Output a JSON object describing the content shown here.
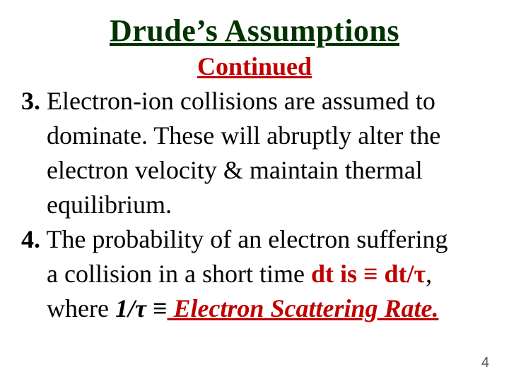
{
  "colors": {
    "title_color": "#003300",
    "accent_color": "#c00000",
    "body_color": "#000000",
    "pagenum_color": "#595959",
    "background": "#ffffff"
  },
  "typography": {
    "font_family": "Times New Roman",
    "title_fontsize_pt": 33,
    "subtitle_fontsize_pt": 27,
    "body_fontsize_pt": 27,
    "pagenum_fontsize_pt": 15,
    "title_weight": "bold",
    "subtitle_weight": "bold",
    "title_underline": true,
    "subtitle_underline": true
  },
  "title": "Drude’s Assumptions",
  "subtitle": "Continued",
  "items": [
    {
      "number": "3.",
      "lead": " Electron-ion collisions are assumed to",
      "lines": [
        "dominate. These will abruptly alter the",
        "electron velocity & maintain thermal",
        "equilibrium."
      ]
    },
    {
      "number": "4.",
      "lead": " The probability of an electron suffering",
      "lines_rich": {
        "l1_plain_a": " a collision in a short time ",
        "l1_red_a": "dt is ",
        "l1_equiv": "≡",
        "l1_red_b": " dt/τ",
        "l1_plain_b": ",",
        "l2_plain_a": " where ",
        "l2_bold_a": "1/τ ",
        "l2_equiv": "≡",
        "l2_italic": " Electron Scattering Rate."
      }
    }
  ],
  "page_number": "4"
}
